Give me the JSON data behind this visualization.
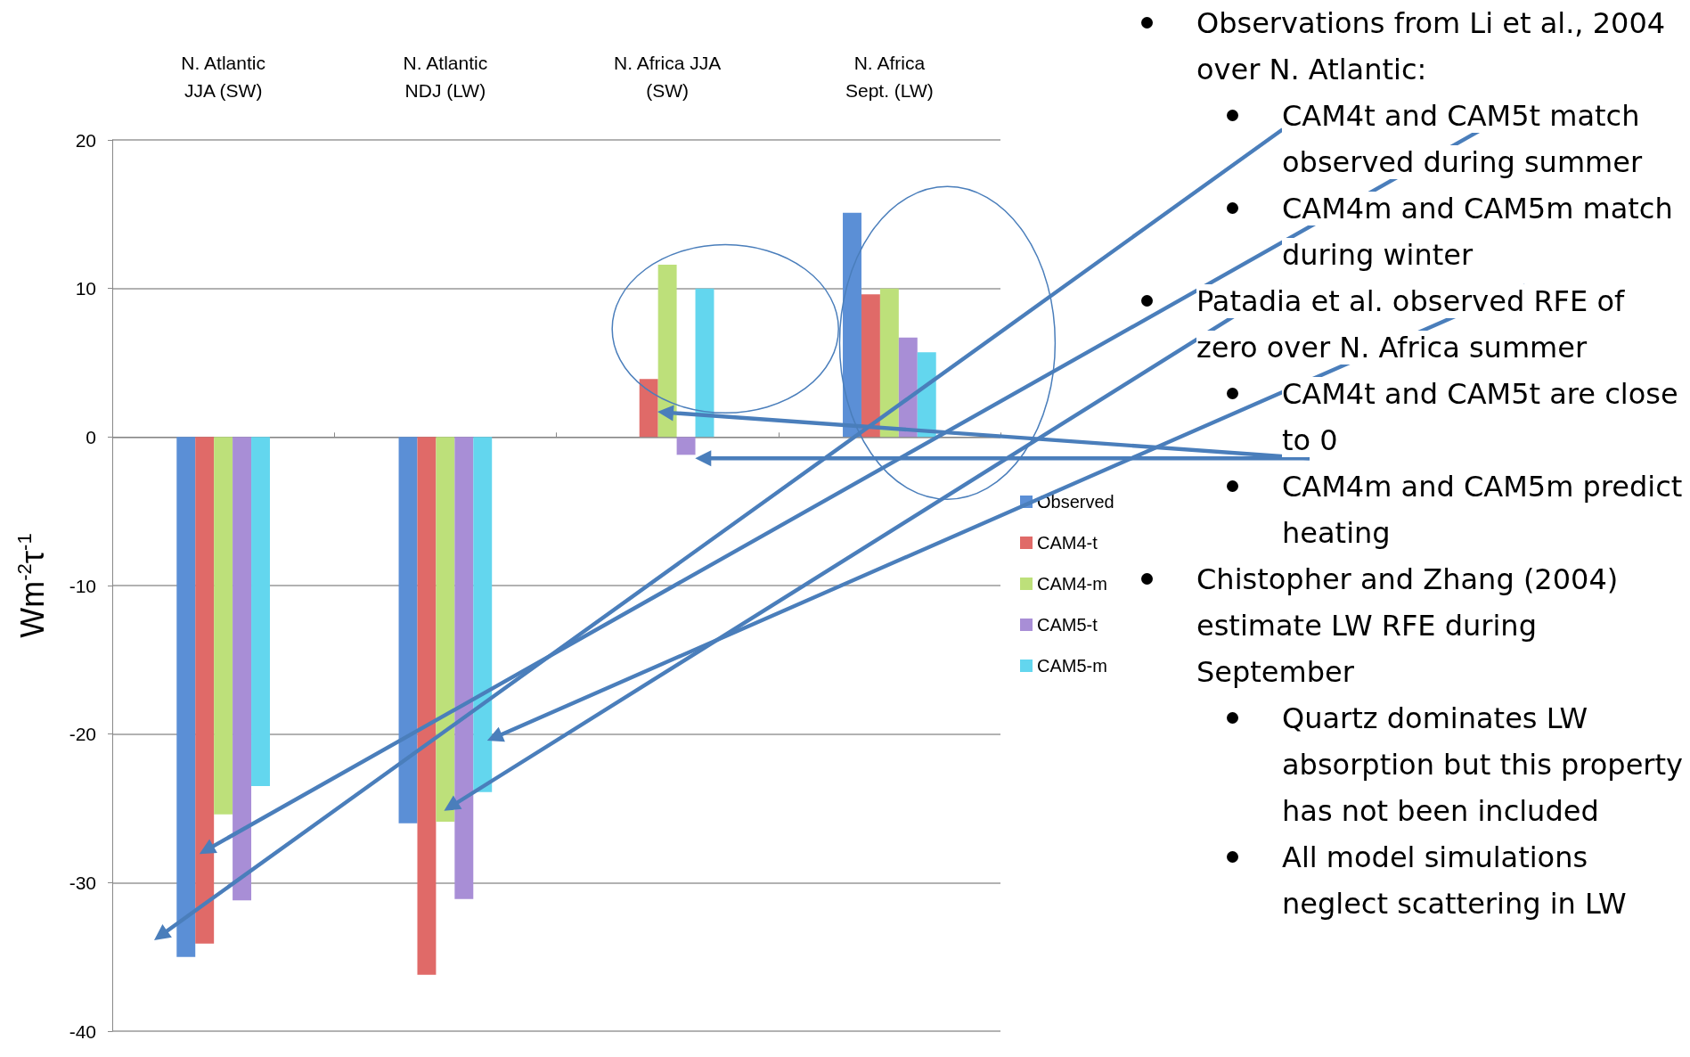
{
  "chart_data": {
    "type": "bar",
    "categories": [
      "N. Atlantic\nJJA (SW)",
      "N. Atlantic\nNDJ (LW)",
      "N. Africa JJA\n(SW)",
      "N. Africa\nSept. (LW)"
    ],
    "ylabel": "Wm$^{-2}$τ$^{-1}$",
    "ylim": [
      -40,
      20
    ],
    "yticks": [
      -40,
      -30,
      -20,
      -10,
      0,
      10,
      20
    ],
    "grid": "y",
    "legend": "right",
    "series": [
      {
        "name": "Observed",
        "color": "#5b8fd6",
        "values": [
          -35,
          -26,
          null,
          15.1
        ]
      },
      {
        "name": "CAM4-t",
        "color": "#e06a68",
        "values": [
          -34.1,
          -36.2,
          3.9,
          9.6
        ]
      },
      {
        "name": "CAM4-m",
        "color": "#bde07a",
        "values": [
          -25.4,
          -25.9,
          11.6,
          10
        ]
      },
      {
        "name": "CAM5-t",
        "color": "#a88ed6",
        "values": [
          -31.2,
          -31.1,
          -1.2,
          6.7
        ]
      },
      {
        "name": "CAM5-m",
        "color": "#63d6ee",
        "values": [
          -23.5,
          -23.9,
          10,
          5.7
        ]
      }
    ],
    "annotations": [
      "Observations from Li et al., 2004 over N. Atlantic:",
      "CAM4t and CAM5t match observed during summer",
      "CAM4m and CAM5m match during winter",
      "Patadia et al. observed RFE of zero over N. Africa summer",
      "CAM4t and CAM5t are close to 0",
      "CAM4m and CAM5m predict heating",
      "Chistopher and Zhang (2004) estimate LW RFE during September",
      "Quartz dominates LW absorption but this property has not been included",
      "All model simulations neglect scattering in LW"
    ]
  }
}
